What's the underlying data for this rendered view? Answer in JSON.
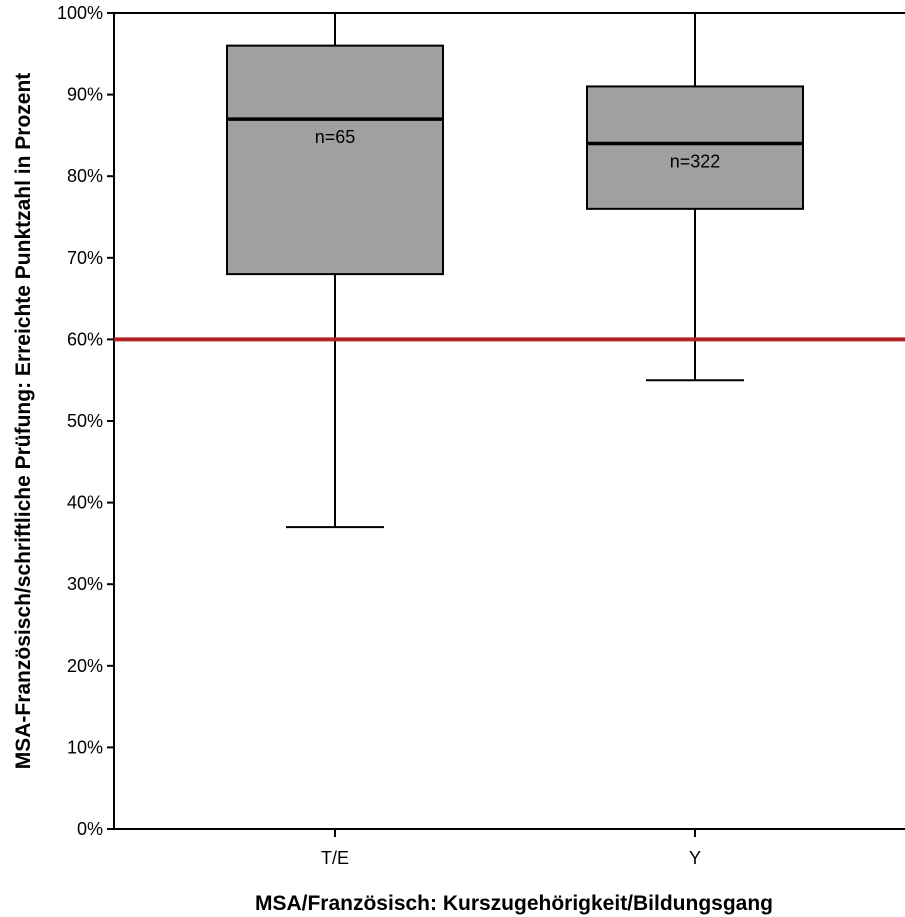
{
  "chart_data": {
    "type": "boxplot",
    "xlabel": "MSA/Französisch: Kurszugehörigkeit/Bildungsgang",
    "ylabel": "MSA-Französisch/schriftliche Prüfung: Erreichte Punktzahl in Prozent",
    "ylim": [
      0,
      100
    ],
    "yticks": [
      0,
      10,
      20,
      30,
      40,
      50,
      60,
      70,
      80,
      90,
      100
    ],
    "ytick_labels": [
      "0%",
      "10%",
      "20%",
      "30%",
      "40%",
      "50%",
      "60%",
      "70%",
      "80%",
      "90%",
      "100%"
    ],
    "categories": [
      "T/E",
      "Y"
    ],
    "boxes": [
      {
        "category": "T/E",
        "whisker_low": 37,
        "q1": 68,
        "median": 87,
        "q3": 96,
        "whisker_high": 100,
        "n_label": "n=65"
      },
      {
        "category": "Y",
        "whisker_low": 55,
        "q1": 76,
        "median": 84,
        "q3": 91,
        "whisker_high": 100,
        "n_label": "n=322"
      }
    ],
    "reference_line": {
      "value": 60,
      "color": "#b22222"
    },
    "box_fill": "#a0a0a0",
    "grid": false
  }
}
